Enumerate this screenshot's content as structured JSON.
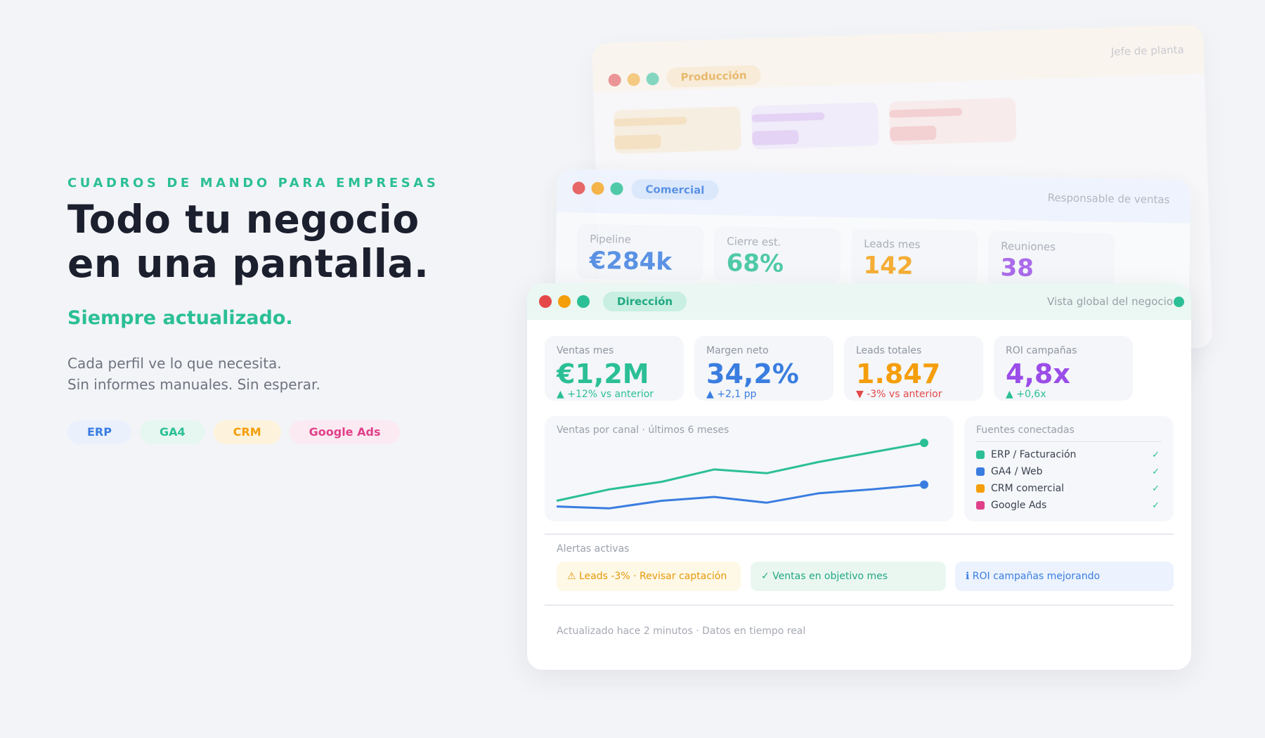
{
  "hero": {
    "eyebrow": "CUADROS DE MANDO PARA EMPRESAS",
    "headline_line1": "Todo tu negocio",
    "headline_line2": "en una pantalla.",
    "subhead": "Siempre actualizado.",
    "desc_line1": "Cada perfil ve lo que necesita.",
    "desc_line2": "Sin informes manuales. Sin esperar.",
    "chips": [
      "ERP",
      "GA4",
      "CRM",
      "Google Ads"
    ]
  },
  "window_produccion": {
    "tag": "Producción",
    "role": "Jefe de planta"
  },
  "window_comercial": {
    "tag": "Comercial",
    "role": "Responsable de ventas",
    "kpis": [
      {
        "label": "Pipeline",
        "value": "€284k"
      },
      {
        "label": "Cierre est.",
        "value": "68%"
      },
      {
        "label": "Leads mes",
        "value": "142"
      },
      {
        "label": "Reuniones",
        "value": "38"
      }
    ]
  },
  "window_direccion": {
    "tag": "Dirección",
    "role": "Vista global del negocio",
    "kpis": [
      {
        "label": "Ventas mes",
        "value": "€1,2M",
        "delta": "▲ +12% vs anterior"
      },
      {
        "label": "Margen neto",
        "value": "34,2%",
        "delta": "▲ +2,1 pp"
      },
      {
        "label": "Leads totales",
        "value": "1.847",
        "delta": "▼ -3% vs anterior"
      },
      {
        "label": "ROI campañas",
        "value": "4,8x",
        "delta": "▲ +0,6x"
      }
    ],
    "chart_title": "Ventas por canal · últimos 6 meses",
    "sources_title": "Fuentes conectadas",
    "sources": [
      {
        "name": "ERP / Facturación",
        "color": "#2bbf96",
        "status": "✓"
      },
      {
        "name": "GA4 / Web",
        "color": "#3a7de0",
        "status": "✓"
      },
      {
        "name": "CRM comercial",
        "color": "#f59e0b",
        "status": "✓"
      },
      {
        "name": "Google Ads",
        "color": "#e0408a",
        "status": "✓"
      }
    ],
    "alerts_title": "Alertas activas",
    "alerts": [
      {
        "text": "⚠ Leads -3% · Revisar captación"
      },
      {
        "text": "✓ Ventas en objetivo mes"
      },
      {
        "text": "ℹ ROI campañas mejorando"
      }
    ],
    "footer": "Actualizado hace 2 minutos · Datos en tiempo real"
  },
  "colors": {
    "green": "#2bbf96",
    "blue": "#3a7de0",
    "orange": "#f59e0b",
    "purple": "#9b4de8",
    "red": "#e54848",
    "pink": "#e0408a"
  },
  "chart_data": {
    "type": "line",
    "x": [
      1,
      2,
      3,
      4,
      5,
      6,
      7,
      8
    ],
    "series": [
      {
        "values": [
          0.3,
          1.5,
          2.3,
          3.6,
          3.2,
          4.4,
          5.4,
          6.4
        ]
      },
      {
        "values": [
          -0.3,
          -0.5,
          0.3,
          0.7,
          0.1,
          1.1,
          1.5,
          2.0
        ]
      }
    ],
    "title": "Ventas por canal · últimos 6 meses"
  }
}
